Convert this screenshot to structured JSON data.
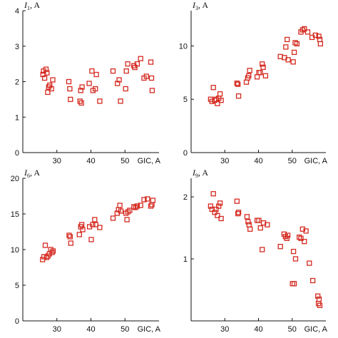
{
  "colors": {
    "marker": "#d42a20",
    "axis": "#111111"
  },
  "chart_data": [
    {
      "type": "scatter",
      "ylabel_var": "I",
      "ylabel_sub": "1",
      "ylabel_unit": ", A",
      "xlabel": "GIC, A",
      "xlim": [
        20,
        60
      ],
      "ylim": [
        0,
        4
      ],
      "xticks": [
        30,
        40,
        50
      ],
      "yticks": [
        0,
        1,
        2,
        3,
        4
      ],
      "points": [
        [
          25.9,
          2.2
        ],
        [
          26.1,
          2.3
        ],
        [
          26.4,
          2.1
        ],
        [
          26.8,
          2.35
        ],
        [
          27.1,
          2.25
        ],
        [
          27.3,
          1.7
        ],
        [
          27.6,
          1.85
        ],
        [
          27.9,
          1.9
        ],
        [
          28.4,
          1.8
        ],
        [
          28.8,
          2.05
        ],
        [
          33.5,
          2.0
        ],
        [
          33.8,
          1.8
        ],
        [
          34.0,
          1.5
        ],
        [
          36.8,
          1.45
        ],
        [
          37.0,
          1.75
        ],
        [
          37.2,
          1.4
        ],
        [
          37.4,
          1.85
        ],
        [
          39.5,
          1.95
        ],
        [
          40.3,
          2.3
        ],
        [
          40.6,
          1.75
        ],
        [
          41.3,
          1.8
        ],
        [
          41.6,
          2.2
        ],
        [
          42.6,
          1.45
        ],
        [
          46.5,
          2.3
        ],
        [
          47.8,
          1.95
        ],
        [
          48.3,
          2.05
        ],
        [
          48.7,
          1.45
        ],
        [
          50.2,
          1.8
        ],
        [
          50.4,
          2.3
        ],
        [
          50.8,
          2.5
        ],
        [
          52.6,
          2.45
        ],
        [
          52.9,
          2.4
        ],
        [
          53.6,
          2.5
        ],
        [
          54.6,
          2.65
        ],
        [
          55.6,
          2.1
        ],
        [
          56.3,
          2.15
        ],
        [
          57.6,
          2.55
        ],
        [
          57.8,
          2.1
        ],
        [
          58.0,
          1.75
        ]
      ]
    },
    {
      "type": "scatter",
      "ylabel_var": "I",
      "ylabel_sub": "3",
      "ylabel_unit": ", A",
      "xlabel": "GIC, A",
      "xlim": [
        20,
        60
      ],
      "ylim": [
        0,
        13.3
      ],
      "xticks": [
        30,
        40,
        50
      ],
      "yticks": [
        0,
        5,
        10
      ],
      "points": [
        [
          25.8,
          5.0
        ],
        [
          26.2,
          4.8
        ],
        [
          26.6,
          6.1
        ],
        [
          27.0,
          4.9
        ],
        [
          27.4,
          5.0
        ],
        [
          27.8,
          4.6
        ],
        [
          28.2,
          5.1
        ],
        [
          28.6,
          5.5
        ],
        [
          28.9,
          4.9
        ],
        [
          33.6,
          6.5
        ],
        [
          33.9,
          6.4
        ],
        [
          34.1,
          5.3
        ],
        [
          36.4,
          6.6
        ],
        [
          36.8,
          7.0
        ],
        [
          37.1,
          7.2
        ],
        [
          37.4,
          7.7
        ],
        [
          39.6,
          7.1
        ],
        [
          40.1,
          7.5
        ],
        [
          40.5,
          7.5
        ],
        [
          41.1,
          8.3
        ],
        [
          41.4,
          8.0
        ],
        [
          42.1,
          7.2
        ],
        [
          46.5,
          9.0
        ],
        [
          47.7,
          8.9
        ],
        [
          48.1,
          9.9
        ],
        [
          48.5,
          10.6
        ],
        [
          48.8,
          8.7
        ],
        [
          50.3,
          8.5
        ],
        [
          50.6,
          9.4
        ],
        [
          50.9,
          10.3
        ],
        [
          51.4,
          10.2
        ],
        [
          52.6,
          11.3
        ],
        [
          53.1,
          11.5
        ],
        [
          53.6,
          11.6
        ],
        [
          54.6,
          11.3
        ],
        [
          55.9,
          10.8
        ],
        [
          56.9,
          11.0
        ],
        [
          57.9,
          10.9
        ],
        [
          58.2,
          10.6
        ],
        [
          58.4,
          10.2
        ]
      ]
    },
    {
      "type": "scatter",
      "ylabel_var": "I",
      "ylabel_sub": "6",
      "ylabel_unit": ", A",
      "xlabel": "GIC, A",
      "xlim": [
        20,
        60
      ],
      "ylim": [
        0,
        20
      ],
      "xticks": [
        30,
        40,
        50
      ],
      "yticks": [
        0,
        5,
        10,
        15,
        20
      ],
      "points": [
        [
          25.8,
          8.6
        ],
        [
          26.2,
          9.0
        ],
        [
          26.6,
          10.6
        ],
        [
          27.0,
          8.9
        ],
        [
          27.4,
          9.1
        ],
        [
          27.8,
          9.4
        ],
        [
          28.2,
          10.0
        ],
        [
          28.6,
          9.6
        ],
        [
          28.9,
          9.8
        ],
        [
          33.6,
          12.0
        ],
        [
          33.9,
          11.8
        ],
        [
          34.1,
          10.9
        ],
        [
          36.6,
          12.1
        ],
        [
          37.0,
          13.2
        ],
        [
          37.3,
          13.5
        ],
        [
          37.6,
          12.8
        ],
        [
          39.6,
          13.2
        ],
        [
          40.1,
          11.4
        ],
        [
          40.5,
          13.5
        ],
        [
          41.1,
          14.2
        ],
        [
          41.4,
          13.5
        ],
        [
          42.6,
          13.1
        ],
        [
          46.5,
          14.4
        ],
        [
          47.7,
          15.1
        ],
        [
          48.1,
          15.6
        ],
        [
          48.5,
          16.2
        ],
        [
          48.8,
          15.4
        ],
        [
          50.3,
          15.1
        ],
        [
          50.6,
          14.2
        ],
        [
          50.9,
          15.3
        ],
        [
          51.4,
          15.5
        ],
        [
          52.6,
          16.0
        ],
        [
          53.1,
          15.9
        ],
        [
          53.6,
          16.1
        ],
        [
          54.6,
          16.2
        ],
        [
          55.6,
          17.0
        ],
        [
          56.6,
          17.1
        ],
        [
          57.6,
          16.1
        ],
        [
          57.9,
          16.3
        ],
        [
          58.2,
          16.9
        ]
      ]
    },
    {
      "type": "scatter",
      "ylabel_var": "I",
      "ylabel_sub": "9",
      "ylabel_unit": ", A",
      "xlabel": "GIC, A",
      "xlim": [
        20,
        60
      ],
      "ylim": [
        0,
        2.3
      ],
      "xticks": [
        30,
        40,
        50
      ],
      "yticks": [
        1,
        2
      ],
      "points": [
        [
          25.8,
          1.85
        ],
        [
          26.2,
          1.8
        ],
        [
          26.6,
          2.05
        ],
        [
          27.0,
          1.75
        ],
        [
          27.4,
          1.8
        ],
        [
          27.8,
          1.7
        ],
        [
          28.2,
          1.85
        ],
        [
          28.6,
          1.9
        ],
        [
          28.9,
          1.65
        ],
        [
          33.6,
          1.93
        ],
        [
          33.9,
          1.73
        ],
        [
          34.1,
          1.75
        ],
        [
          36.6,
          1.68
        ],
        [
          36.9,
          1.6
        ],
        [
          37.2,
          1.55
        ],
        [
          37.5,
          1.48
        ],
        [
          39.6,
          1.62
        ],
        [
          40.1,
          1.62
        ],
        [
          40.6,
          1.5
        ],
        [
          41.1,
          1.15
        ],
        [
          41.5,
          1.58
        ],
        [
          42.6,
          1.55
        ],
        [
          46.5,
          1.2
        ],
        [
          47.6,
          1.4
        ],
        [
          48.0,
          1.36
        ],
        [
          48.4,
          1.33
        ],
        [
          48.7,
          1.38
        ],
        [
          50.1,
          0.6
        ],
        [
          50.4,
          1.12
        ],
        [
          50.6,
          0.6
        ],
        [
          51.0,
          1.0
        ],
        [
          52.1,
          1.35
        ],
        [
          52.6,
          1.33
        ],
        [
          53.1,
          1.48
        ],
        [
          53.6,
          1.28
        ],
        [
          54.1,
          1.45
        ],
        [
          55.1,
          0.93
        ],
        [
          56.1,
          0.65
        ],
        [
          57.6,
          0.4
        ],
        [
          57.8,
          0.28
        ],
        [
          58.0,
          0.35
        ],
        [
          58.2,
          0.25
        ]
      ]
    }
  ]
}
